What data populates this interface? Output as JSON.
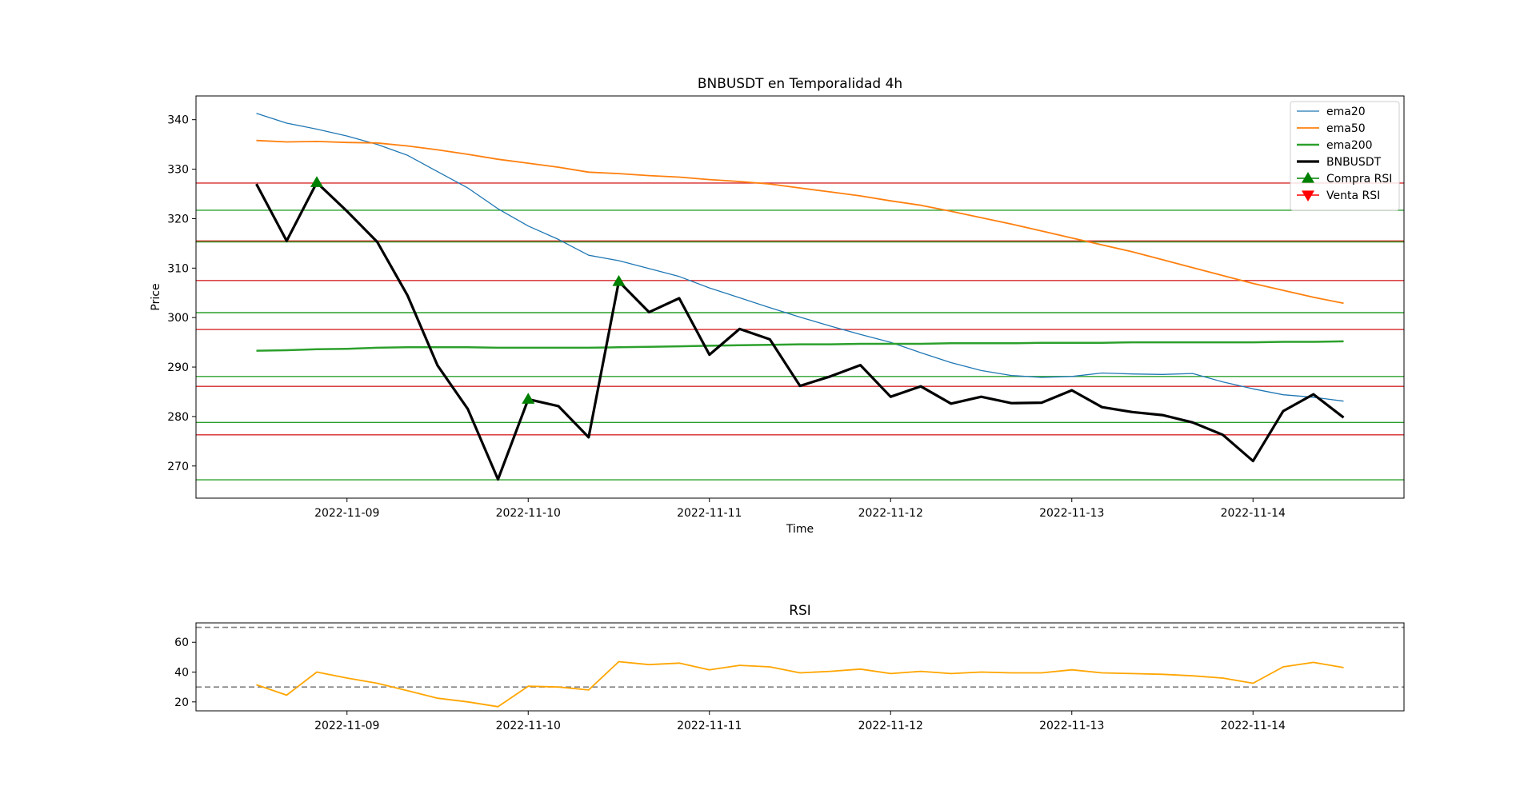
{
  "chart_data": [
    {
      "type": "line",
      "title": "BNBUSDT en Temporalidad 4h",
      "xlabel": "Time",
      "ylabel": "Price",
      "x_range": [
        "2022-11-08 04:00",
        "2022-11-14 20:00"
      ],
      "ylim": [
        263.5,
        344.8
      ],
      "x_ticks": [
        "2022-11-09",
        "2022-11-10",
        "2022-11-11",
        "2022-11-12",
        "2022-11-13",
        "2022-11-14"
      ],
      "y_ticks": [
        270,
        280,
        290,
        300,
        310,
        320,
        330,
        340
      ],
      "grid": false,
      "legend": "top-right",
      "x": [
        "2022-11-08 12:00",
        "2022-11-08 16:00",
        "2022-11-08 20:00",
        "2022-11-09 00:00",
        "2022-11-09 04:00",
        "2022-11-09 08:00",
        "2022-11-09 12:00",
        "2022-11-09 16:00",
        "2022-11-09 20:00",
        "2022-11-10 00:00",
        "2022-11-10 04:00",
        "2022-11-10 08:00",
        "2022-11-10 12:00",
        "2022-11-10 16:00",
        "2022-11-10 20:00",
        "2022-11-11 00:00",
        "2022-11-11 04:00",
        "2022-11-11 08:00",
        "2022-11-11 12:00",
        "2022-11-11 16:00",
        "2022-11-11 20:00",
        "2022-11-12 00:00",
        "2022-11-12 04:00",
        "2022-11-12 08:00",
        "2022-11-12 12:00",
        "2022-11-12 16:00",
        "2022-11-12 20:00",
        "2022-11-13 00:00",
        "2022-11-13 04:00",
        "2022-11-13 08:00",
        "2022-11-13 12:00",
        "2022-11-13 16:00",
        "2022-11-13 20:00",
        "2022-11-14 00:00",
        "2022-11-14 04:00",
        "2022-11-14 08:00",
        "2022-11-14 12:00"
      ],
      "series": [
        {
          "name": "ema20",
          "color": "#1f77b4",
          "values": [
            341.3,
            339.3,
            338.1,
            336.7,
            335.0,
            332.8,
            329.5,
            326.2,
            322.0,
            318.5,
            315.8,
            312.6,
            311.5,
            309.9,
            308.3,
            306.0,
            304.0,
            302.0,
            300.1,
            298.3,
            296.6,
            295.0,
            292.9,
            290.9,
            289.3,
            288.3,
            287.9,
            288.1,
            288.8,
            288.6,
            288.5,
            288.7,
            287.0,
            285.6,
            284.4,
            283.9,
            283.1
          ]
        },
        {
          "name": "ema50",
          "color": "#ff7f0e",
          "values": [
            335.8,
            335.5,
            335.6,
            335.4,
            335.3,
            334.7,
            333.9,
            333.0,
            332.0,
            331.2,
            330.4,
            329.4,
            329.1,
            328.7,
            328.4,
            327.9,
            327.5,
            327.0,
            326.2,
            325.4,
            324.6,
            323.6,
            322.7,
            321.5,
            320.2,
            318.9,
            317.5,
            316.1,
            314.7,
            313.3,
            311.7,
            310.1,
            308.5,
            306.9,
            305.5,
            304.1,
            302.9
          ]
        },
        {
          "name": "ema200",
          "color": "#2ca02c",
          "values": [
            293.3,
            293.4,
            293.6,
            293.7,
            293.9,
            294.0,
            294.0,
            294.0,
            293.9,
            293.9,
            293.9,
            293.9,
            294.0,
            294.1,
            294.2,
            294.3,
            294.4,
            294.5,
            294.6,
            294.6,
            294.7,
            294.7,
            294.7,
            294.8,
            294.8,
            294.8,
            294.9,
            294.9,
            294.9,
            295.0,
            295.0,
            295.0,
            295.0,
            295.0,
            295.1,
            295.1,
            295.2
          ]
        },
        {
          "name": "BNBUSDT",
          "color": "#000000",
          "values": [
            327.0,
            315.5,
            327.3,
            321.5,
            315.3,
            304.5,
            290.3,
            281.5,
            267.3,
            283.5,
            282.1,
            275.8,
            307.3,
            301.1,
            303.9,
            292.5,
            297.7,
            295.6,
            286.2,
            288.1,
            290.4,
            284.0,
            286.1,
            282.6,
            284.0,
            282.7,
            282.8,
            285.3,
            281.9,
            280.9,
            280.3,
            278.8,
            276.3,
            271.0,
            281.1,
            284.5,
            279.8
          ]
        }
      ],
      "markers": [
        {
          "name": "Compra RSI",
          "color": "#008000",
          "shape": "triangle-up",
          "points": [
            {
              "x": "2022-11-08 20:00",
              "y": 327.3
            },
            {
              "x": "2022-11-10 00:00",
              "y": 283.5
            },
            {
              "x": "2022-11-10 12:00",
              "y": 307.3
            }
          ]
        },
        {
          "name": "Venta RSI",
          "color": "#ff0000",
          "shape": "triangle-down",
          "points": []
        }
      ],
      "hlines": [
        {
          "y": 327.2,
          "color": "#d62728"
        },
        {
          "y": 321.7,
          "color": "#2ca02c"
        },
        {
          "y": 315.5,
          "color": "#d62728"
        },
        {
          "y": 315.3,
          "color": "#2ca02c"
        },
        {
          "y": 307.5,
          "color": "#d62728"
        },
        {
          "y": 301.0,
          "color": "#2ca02c"
        },
        {
          "y": 297.6,
          "color": "#d62728"
        },
        {
          "y": 288.1,
          "color": "#2ca02c"
        },
        {
          "y": 286.1,
          "color": "#d62728"
        },
        {
          "y": 278.8,
          "color": "#2ca02c"
        },
        {
          "y": 276.3,
          "color": "#d62728"
        },
        {
          "y": 267.2,
          "color": "#2ca02c"
        }
      ]
    },
    {
      "type": "line",
      "title": "RSI",
      "xlabel": "",
      "ylabel": "",
      "x_range": [
        "2022-11-08 04:00",
        "2022-11-14 20:00"
      ],
      "ylim": [
        14,
        73
      ],
      "x_ticks": [
        "2022-11-09",
        "2022-11-10",
        "2022-11-11",
        "2022-11-12",
        "2022-11-13",
        "2022-11-14"
      ],
      "y_ticks": [
        20,
        40,
        60
      ],
      "grid": false,
      "x": [
        "2022-11-08 12:00",
        "2022-11-08 16:00",
        "2022-11-08 20:00",
        "2022-11-09 00:00",
        "2022-11-09 04:00",
        "2022-11-09 08:00",
        "2022-11-09 12:00",
        "2022-11-09 16:00",
        "2022-11-09 20:00",
        "2022-11-10 00:00",
        "2022-11-10 04:00",
        "2022-11-10 08:00",
        "2022-11-10 12:00",
        "2022-11-10 16:00",
        "2022-11-10 20:00",
        "2022-11-11 00:00",
        "2022-11-11 04:00",
        "2022-11-11 08:00",
        "2022-11-11 12:00",
        "2022-11-11 16:00",
        "2022-11-11 20:00",
        "2022-11-12 00:00",
        "2022-11-12 04:00",
        "2022-11-12 08:00",
        "2022-11-12 12:00",
        "2022-11-12 16:00",
        "2022-11-12 20:00",
        "2022-11-13 00:00",
        "2022-11-13 04:00",
        "2022-11-13 08:00",
        "2022-11-13 12:00",
        "2022-11-13 16:00",
        "2022-11-13 20:00",
        "2022-11-14 00:00",
        "2022-11-14 04:00",
        "2022-11-14 08:00",
        "2022-11-14 12:00"
      ],
      "series": [
        {
          "color": "#ffa500",
          "values": [
            31.5,
            24.5,
            40.0,
            36.0,
            32.5,
            27.5,
            22.5,
            20.0,
            16.8,
            30.5,
            30.0,
            28.0,
            47.0,
            45.0,
            46.0,
            41.5,
            44.5,
            43.5,
            39.5,
            40.5,
            42.0,
            39.0,
            40.5,
            39.0,
            40.0,
            39.5,
            39.5,
            41.5,
            39.5,
            39.0,
            38.5,
            37.5,
            36.0,
            32.5,
            43.5,
            46.5,
            43.0
          ]
        }
      ],
      "hlines": [
        {
          "y": 70,
          "color": "#808080",
          "style": "dashed"
        },
        {
          "y": 30,
          "color": "#808080",
          "style": "dashed"
        }
      ]
    }
  ]
}
